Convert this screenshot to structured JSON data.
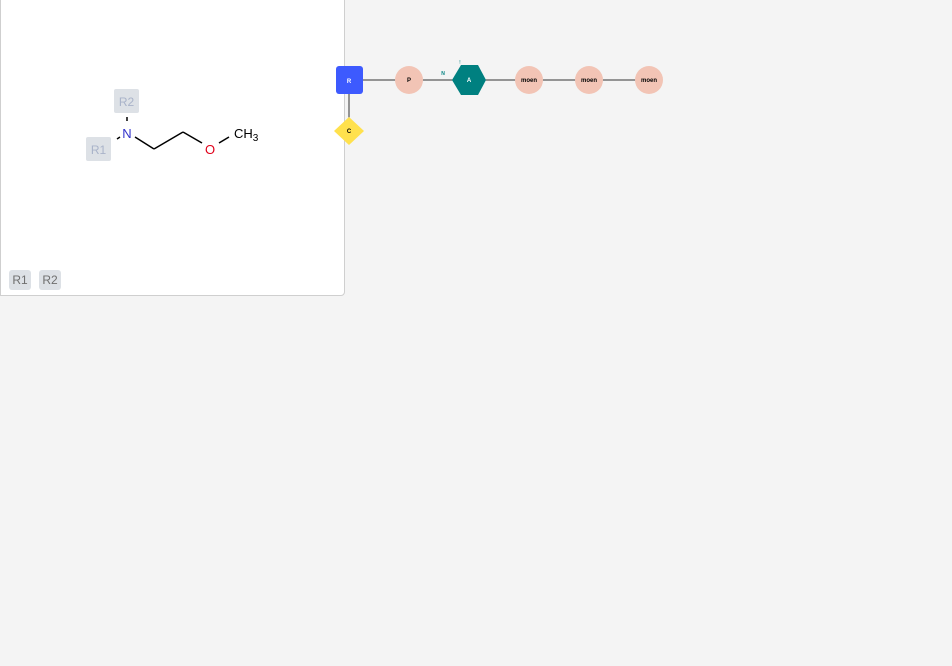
{
  "molecule_panel": {
    "atoms": {
      "r2": "R2",
      "r1": "R1",
      "n": "N",
      "o": "O",
      "c": "CH",
      "c_sub": "3"
    },
    "rgroup_chips": [
      "R1",
      "R2"
    ]
  },
  "helm": {
    "sugar_label": "R",
    "branch_label": "C",
    "phosphate_label": "P",
    "hex_label": "A",
    "n_label": "N",
    "tick_label": "!",
    "monomers": [
      "moen",
      "moen",
      "moen"
    ]
  },
  "colors": {
    "background": "#f4f4f4",
    "sugar": "#3d5afe",
    "branch": "#ffe14d",
    "phosphate": "#f2c4b5",
    "hex": "#008080",
    "nitrogen": "#3333cc",
    "oxygen": "#e0001a",
    "rgroup_box": "#dde1e6",
    "rgroup_text": "#a9b3c9"
  }
}
